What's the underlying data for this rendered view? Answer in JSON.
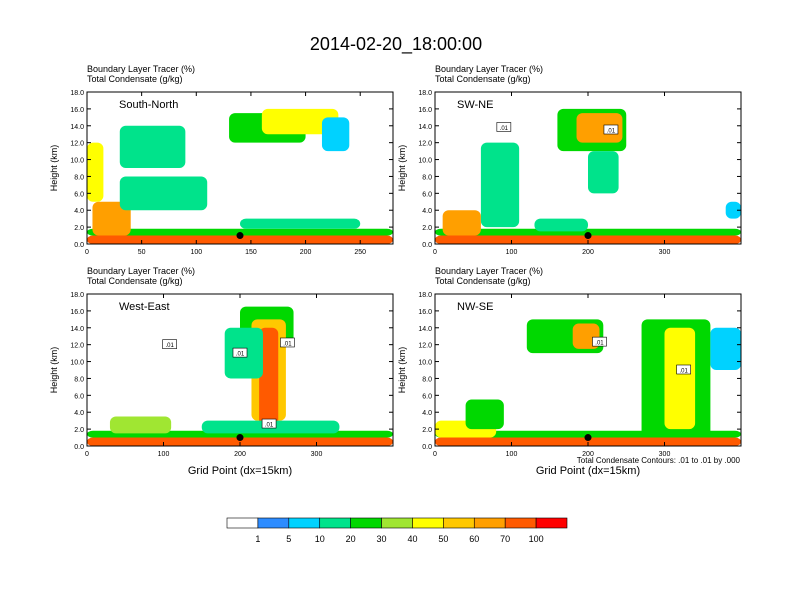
{
  "figure": {
    "title": "2014-02-20_18:00:00",
    "contour_note": "Total Condensate Contours: .01 to .01 by .000",
    "xlabel": "Grid Point (dx=15km)"
  },
  "colorbar": {
    "labels": [
      "1",
      "5",
      "10",
      "20",
      "30",
      "40",
      "50",
      "60",
      "70",
      "100"
    ],
    "colors": [
      "#ffffff",
      "#2d8cff",
      "#00d2ff",
      "#00e38b",
      "#00d800",
      "#a0e632",
      "#ffff00",
      "#ffc800",
      "#ff9f00",
      "#ff5a00",
      "#ff0000"
    ]
  },
  "chart_data": [
    {
      "type": "heatmap",
      "panel": "South-North",
      "line1": "Boundary Layer Tracer    (%)",
      "line2": "Total Condensate   (g/kg)",
      "ylabel": "Height (km)",
      "xlabel": "",
      "xlim": [
        0,
        280
      ],
      "ylim": [
        0,
        18
      ],
      "xticks": [
        0,
        50,
        100,
        150,
        200,
        250
      ],
      "yticks": [
        "0.0",
        "2.0",
        "4.0",
        "6.0",
        "8.0",
        "10.0",
        "12.0",
        "14.0",
        "16.0",
        "18.0"
      ],
      "marker": {
        "x": 140,
        "y": 1.0
      },
      "contour_labels": [],
      "regions": [
        {
          "x": [
            0,
            280
          ],
          "y": [
            0,
            1.0
          ],
          "value": 70
        },
        {
          "x": [
            0,
            280
          ],
          "y": [
            1.0,
            1.8
          ],
          "value": 20
        },
        {
          "x": [
            5,
            40
          ],
          "y": [
            1.0,
            5.0
          ],
          "value": 60
        },
        {
          "x": [
            0,
            15
          ],
          "y": [
            5,
            12
          ],
          "value": 40
        },
        {
          "x": [
            30,
            110
          ],
          "y": [
            4,
            8
          ],
          "value": 15
        },
        {
          "x": [
            30,
            90
          ],
          "y": [
            9,
            14
          ],
          "value": 10
        },
        {
          "x": [
            130,
            200
          ],
          "y": [
            12,
            15.5
          ],
          "value": 20
        },
        {
          "x": [
            160,
            230
          ],
          "y": [
            13,
            16
          ],
          "value": 40
        },
        {
          "x": [
            215,
            240
          ],
          "y": [
            11,
            15
          ],
          "value": 5
        },
        {
          "x": [
            140,
            250
          ],
          "y": [
            1.8,
            3
          ],
          "value": 10
        }
      ]
    },
    {
      "type": "heatmap",
      "panel": "SW-NE",
      "line1": "Boundary Layer Tracer    (%)",
      "line2": "Total Condensate   (g/kg)",
      "ylabel": "Height (km)",
      "xlabel": "",
      "xlim": [
        0,
        400
      ],
      "ylim": [
        0,
        18
      ],
      "xticks": [
        0,
        100,
        200,
        300
      ],
      "yticks": [
        "0.0",
        "2.0",
        "4.0",
        "6.0",
        "8.0",
        "10.0",
        "12.0",
        "14.0",
        "16.0",
        "18.0"
      ],
      "marker": {
        "x": 200,
        "y": 1.0
      },
      "contour_labels": [
        {
          "text": ".01",
          "x": 90,
          "y": 13.8
        },
        {
          "text": ".01",
          "x": 230,
          "y": 13.5
        }
      ],
      "regions": [
        {
          "x": [
            0,
            400
          ],
          "y": [
            0,
            1.0
          ],
          "value": 70
        },
        {
          "x": [
            0,
            400
          ],
          "y": [
            1.0,
            1.8
          ],
          "value": 20
        },
        {
          "x": [
            10,
            60
          ],
          "y": [
            1,
            4
          ],
          "value": 60
        },
        {
          "x": [
            60,
            110
          ],
          "y": [
            2,
            12
          ],
          "value": 10
        },
        {
          "x": [
            160,
            250
          ],
          "y": [
            11,
            16
          ],
          "value": 20
        },
        {
          "x": [
            185,
            245
          ],
          "y": [
            12,
            15.5
          ],
          "value": 60
        },
        {
          "x": [
            200,
            240
          ],
          "y": [
            6,
            11
          ],
          "value": 10
        },
        {
          "x": [
            380,
            400
          ],
          "y": [
            3,
            5
          ],
          "value": 5
        },
        {
          "x": [
            130,
            200
          ],
          "y": [
            1.5,
            3
          ],
          "value": 10
        }
      ]
    },
    {
      "type": "heatmap",
      "panel": "West-East",
      "line1": "Boundary Layer Tracer    (%)",
      "line2": "Total Condensate   (g/kg)",
      "ylabel": "Height (km)",
      "xlabel": "Grid Point (dx=15km)",
      "xlim": [
        0,
        400
      ],
      "ylim": [
        0,
        18
      ],
      "xticks": [
        0,
        100,
        200,
        300
      ],
      "yticks": [
        "0.0",
        "2.0",
        "4.0",
        "6.0",
        "8.0",
        "10.0",
        "12.0",
        "14.0",
        "16.0",
        "18.0"
      ],
      "marker": {
        "x": 200,
        "y": 1.0
      },
      "contour_labels": [
        {
          "text": ".01",
          "x": 108,
          "y": 12.0
        },
        {
          "text": ".01",
          "x": 200,
          "y": 11.0
        },
        {
          "text": ".01",
          "x": 262,
          "y": 12.2
        },
        {
          "text": ".01",
          "x": 238,
          "y": 2.6
        }
      ],
      "regions": [
        {
          "x": [
            0,
            400
          ],
          "y": [
            0,
            1.0
          ],
          "value": 70
        },
        {
          "x": [
            0,
            400
          ],
          "y": [
            1.0,
            1.8
          ],
          "value": 20
        },
        {
          "x": [
            30,
            110
          ],
          "y": [
            1.5,
            3.5
          ],
          "value": 30
        },
        {
          "x": [
            200,
            270
          ],
          "y": [
            12,
            16.5
          ],
          "value": 20
        },
        {
          "x": [
            215,
            260
          ],
          "y": [
            3,
            15
          ],
          "value": 50
        },
        {
          "x": [
            225,
            250
          ],
          "y": [
            2,
            14
          ],
          "value": 70
        },
        {
          "x": [
            180,
            230
          ],
          "y": [
            8,
            14
          ],
          "value": 10
        },
        {
          "x": [
            150,
            330
          ],
          "y": [
            1.5,
            3
          ],
          "value": 10
        }
      ]
    },
    {
      "type": "heatmap",
      "panel": "NW-SE",
      "line1": "Boundary Layer Tracer    (%)",
      "line2": "Total Condensate   (g/kg)",
      "ylabel": "Height (km)",
      "xlabel": "Grid Point (dx=15km)",
      "xlim": [
        0,
        400
      ],
      "ylim": [
        0,
        18
      ],
      "xticks": [
        0,
        100,
        200,
        300
      ],
      "yticks": [
        "0.0",
        "2.0",
        "4.0",
        "6.0",
        "8.0",
        "10.0",
        "12.0",
        "14.0",
        "16.0",
        "18.0"
      ],
      "marker": {
        "x": 200,
        "y": 1.0
      },
      "contour_labels": [
        {
          "text": ".01",
          "x": 215,
          "y": 12.3
        },
        {
          "text": ".01",
          "x": 325,
          "y": 9.0
        }
      ],
      "regions": [
        {
          "x": [
            0,
            400
          ],
          "y": [
            0,
            1.0
          ],
          "value": 70
        },
        {
          "x": [
            0,
            400
          ],
          "y": [
            1.0,
            1.8
          ],
          "value": 20
        },
        {
          "x": [
            0,
            80
          ],
          "y": [
            1.0,
            3.0
          ],
          "value": 40
        },
        {
          "x": [
            40,
            90
          ],
          "y": [
            2,
            5.5
          ],
          "value": 20
        },
        {
          "x": [
            120,
            220
          ],
          "y": [
            11,
            15
          ],
          "value": 20
        },
        {
          "x": [
            180,
            215
          ],
          "y": [
            11.5,
            14.5
          ],
          "value": 60
        },
        {
          "x": [
            270,
            360
          ],
          "y": [
            1,
            15
          ],
          "value": 20
        },
        {
          "x": [
            300,
            340
          ],
          "y": [
            2,
            14
          ],
          "value": 40
        },
        {
          "x": [
            360,
            400
          ],
          "y": [
            9,
            14
          ],
          "value": 5
        }
      ]
    }
  ]
}
